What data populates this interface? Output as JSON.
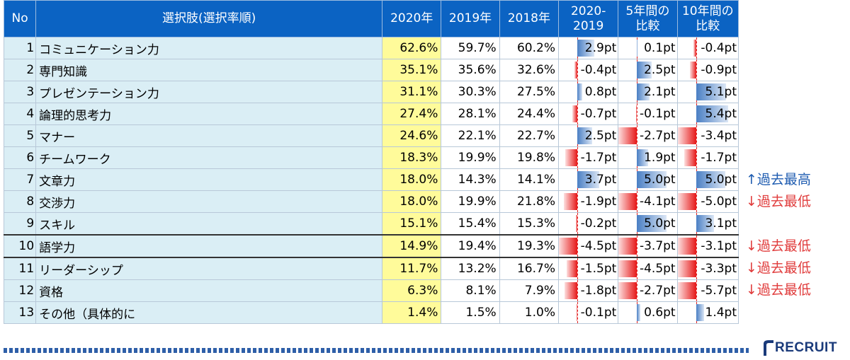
{
  "table": {
    "headers": {
      "no": "No",
      "label": "選択肢(選択率順)",
      "y2020": "2020年",
      "y2019": "2019年",
      "y2018": "2018年",
      "d1_line1": "2020-",
      "d1_line2": "2019",
      "d5_line1": "5年間の",
      "d5_line2": "比較",
      "d10_line1": "10年間の",
      "d10_line2": "比較"
    },
    "rows": [
      {
        "no": "1",
        "label": "コミュニケーション力",
        "y2020": "62.6%",
        "y2019": "59.7%",
        "y2018": "60.2%",
        "d1": "2.9pt",
        "d5": "0.1pt",
        "d10": "-0.4pt",
        "d1v": 2.9,
        "d5v": 0.1,
        "d10v": -0.4
      },
      {
        "no": "2",
        "label": "専門知識",
        "y2020": "35.1%",
        "y2019": "35.6%",
        "y2018": "32.6%",
        "d1": "-0.4pt",
        "d5": "2.5pt",
        "d10": "-0.9pt",
        "d1v": -0.4,
        "d5v": 2.5,
        "d10v": -0.9
      },
      {
        "no": "3",
        "label": "プレゼンテーション力",
        "y2020": "31.1%",
        "y2019": "30.3%",
        "y2018": "27.5%",
        "d1": "0.8pt",
        "d5": "2.1pt",
        "d10": "5.1pt",
        "d1v": 0.8,
        "d5v": 2.1,
        "d10v": 5.1
      },
      {
        "no": "4",
        "label": "論理的思考力",
        "y2020": "27.4%",
        "y2019": "28.1%",
        "y2018": "24.4%",
        "d1": "-0.7pt",
        "d5": "-0.1pt",
        "d10": "5.4pt",
        "d1v": -0.7,
        "d5v": -0.1,
        "d10v": 5.4
      },
      {
        "no": "5",
        "label": "マナー",
        "y2020": "24.6%",
        "y2019": "22.1%",
        "y2018": "22.7%",
        "d1": "2.5pt",
        "d5": "-2.7pt",
        "d10": "-3.4pt",
        "d1v": 2.5,
        "d5v": -2.7,
        "d10v": -3.4
      },
      {
        "no": "6",
        "label": "チームワーク",
        "y2020": "18.3%",
        "y2019": "19.9%",
        "y2018": "19.8%",
        "d1": "-1.7pt",
        "d5": "1.9pt",
        "d10": "-1.7pt",
        "d1v": -1.7,
        "d5v": 1.9,
        "d10v": -1.7
      },
      {
        "no": "7",
        "label": "文章力",
        "y2020": "18.0%",
        "y2019": "14.3%",
        "y2018": "14.1%",
        "d1": "3.7pt",
        "d5": "5.0pt",
        "d10": "5.0pt",
        "d1v": 3.7,
        "d5v": 5.0,
        "d10v": 5.0
      },
      {
        "no": "8",
        "label": "交渉力",
        "y2020": "18.0%",
        "y2019": "19.9%",
        "y2018": "21.8%",
        "d1": "-1.9pt",
        "d5": "-4.1pt",
        "d10": "-5.0pt",
        "d1v": -1.9,
        "d5v": -4.1,
        "d10v": -5.0
      },
      {
        "no": "9",
        "label": "スキル",
        "y2020": "15.1%",
        "y2019": "15.4%",
        "y2018": "15.3%",
        "d1": "-0.2pt",
        "d5": "5.0pt",
        "d10": "3.1pt",
        "d1v": -0.2,
        "d5v": 5.0,
        "d10v": 3.1
      },
      {
        "no": "10",
        "label": "語学力",
        "y2020": "14.9%",
        "y2019": "19.4%",
        "y2018": "19.3%",
        "d1": "-4.5pt",
        "d5": "-3.7pt",
        "d10": "-3.1pt",
        "d1v": -4.5,
        "d5v": -3.7,
        "d10v": -3.1
      },
      {
        "no": "11",
        "label": "リーダーシップ",
        "y2020": "11.7%",
        "y2019": "13.2%",
        "y2018": "16.7%",
        "d1": "-1.5pt",
        "d5": "-4.5pt",
        "d10": "-3.3pt",
        "d1v": -1.5,
        "d5v": -4.5,
        "d10v": -3.3
      },
      {
        "no": "12",
        "label": "資格",
        "y2020": "6.3%",
        "y2019": "8.1%",
        "y2018": "7.9%",
        "d1": "-1.8pt",
        "d5": "-2.7pt",
        "d10": "-5.7pt",
        "d1v": -1.8,
        "d5v": -2.7,
        "d10v": -5.7
      },
      {
        "no": "13",
        "label": "その他（具体的に",
        "y2020": "1.4%",
        "y2019": "1.5%",
        "y2018": "1.0%",
        "d1": "-0.1pt",
        "d5": "0.6pt",
        "d10": "1.4pt",
        "d1v": -0.1,
        "d5v": 0.6,
        "d10v": 1.4
      }
    ]
  },
  "notes": [
    {
      "row": 7,
      "text": "↑過去最高",
      "kind": "up"
    },
    {
      "row": 8,
      "text": "↓過去最低",
      "kind": "down"
    },
    {
      "row": 10,
      "text": "↓過去最低",
      "kind": "down"
    },
    {
      "row": 11,
      "text": "↓過去最低",
      "kind": "down"
    },
    {
      "row": 12,
      "text": "↓過去最低",
      "kind": "down"
    }
  ],
  "footer": {
    "logo_text": "RECRUIT"
  },
  "colors": {
    "header_bg": "#0b63c3",
    "label_bg": "#daeef5",
    "highlight_2020": "#fffb9a",
    "positive_bar": "#4a7fc4",
    "negative_bar": "#e61818",
    "note_up": "#1d5bb0",
    "note_down": "#e03b3b",
    "logo": "#1a3a7a"
  },
  "bar_scale_max": 6
}
